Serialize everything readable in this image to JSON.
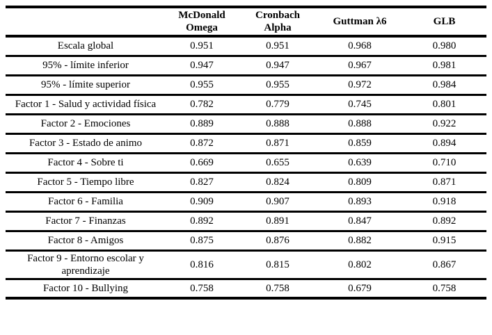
{
  "page": {
    "background": "#ffffff",
    "text_color": "#000000",
    "rule_color": "#000000"
  },
  "table": {
    "headers": [
      "",
      "McDonald Omega",
      "Cronbach Alpha",
      "Guttman λ6",
      "GLB"
    ],
    "rows": [
      {
        "label": "Escala global",
        "values": [
          "0.951",
          "0.951",
          "0.968",
          "0.980"
        ]
      },
      {
        "label": "95% - límite inferior",
        "values": [
          "0.947",
          "0.947",
          "0.967",
          "0.981"
        ]
      },
      {
        "label": "95% - límite superior",
        "values": [
          "0.955",
          "0.955",
          "0.972",
          "0.984"
        ]
      },
      {
        "label": "Factor 1 - Salud y actividad física",
        "values": [
          "0.782",
          "0.779",
          "0.745",
          "0.801"
        ]
      },
      {
        "label": "Factor 2 - Emociones",
        "values": [
          "0.889",
          "0.888",
          "0.888",
          "0.922"
        ]
      },
      {
        "label": "Factor 3 - Estado de animo",
        "values": [
          "0.872",
          "0.871",
          "0.859",
          "0.894"
        ]
      },
      {
        "label": "Factor 4 - Sobre ti",
        "values": [
          "0.669",
          "0.655",
          "0.639",
          "0.710"
        ]
      },
      {
        "label": "Factor 5 - Tiempo libre",
        "values": [
          "0.827",
          "0.824",
          "0.809",
          "0.871"
        ]
      },
      {
        "label": "Factor 6 - Familia",
        "values": [
          "0.909",
          "0.907",
          "0.893",
          "0.918"
        ]
      },
      {
        "label": "Factor 7 - Finanzas",
        "values": [
          "0.892",
          "0.891",
          "0.847",
          "0.892"
        ]
      },
      {
        "label": "Factor 8 - Amigos",
        "values": [
          "0.875",
          "0.876",
          "0.882",
          "0.915"
        ]
      },
      {
        "label": "Factor 9 - Entorno escolar y aprendizaje",
        "values": [
          "0.816",
          "0.815",
          "0.802",
          "0.867"
        ]
      },
      {
        "label": "Factor 10 - Bullying",
        "values": [
          "0.758",
          "0.758",
          "0.679",
          "0.758"
        ]
      }
    ]
  }
}
